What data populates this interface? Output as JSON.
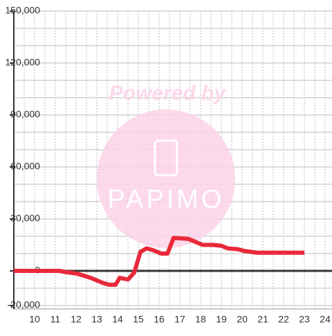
{
  "chart_data": {
    "type": "line",
    "annotations": [
      "Powered by",
      "PAPIMO"
    ],
    "x": [
      9.0,
      11.2,
      11.5,
      12.0,
      12.3,
      12.7,
      13.0,
      13.3,
      13.6,
      13.9,
      14.1,
      14.5,
      14.8,
      15.1,
      15.4,
      15.7,
      16.1,
      16.4,
      16.7,
      17.4,
      17.7,
      18.1,
      18.6,
      19.0,
      19.3,
      19.8,
      20.1,
      20.7,
      21.0,
      23.0
    ],
    "series": [
      {
        "color": "#e8293a",
        "values": [
          0,
          0,
          -700,
          -1500,
          -2500,
          -4000,
          -5500,
          -7000,
          -8000,
          -8000,
          -4000,
          -5000,
          -1000,
          11000,
          13000,
          12000,
          10000,
          10000,
          19000,
          18500,
          17000,
          15000,
          15000,
          14500,
          13000,
          12500,
          11500,
          10500,
          10500,
          10500
        ]
      }
    ],
    "xlim": [
      9,
      24.33
    ],
    "ylim": [
      -22000,
      150000
    ],
    "xticks": [
      10,
      11,
      12,
      13,
      14,
      15,
      16,
      17,
      18,
      19,
      20,
      21,
      22,
      23,
      24
    ],
    "yticks": [
      {
        "value": -20000,
        "label": "-20,000"
      },
      0,
      {
        "value": 30000,
        "label": "30,000"
      },
      {
        "value": 60000,
        "label": "60,000"
      },
      {
        "value": 90000,
        "label": "90,000"
      },
      {
        "value": 120000,
        "label": "120,000"
      },
      {
        "value": 150000,
        "label": "150,000"
      }
    ],
    "ygrid_lines": [
      -20000,
      -10000,
      0,
      10000,
      20000,
      30000,
      40000,
      50000,
      60000,
      70000,
      80000,
      90000,
      100000,
      110000,
      120000,
      130000,
      140000,
      150000
    ],
    "xgrid_lines": [
      9.5,
      10,
      10.5,
      11,
      11.5,
      12,
      12.5,
      13,
      13.5,
      14,
      14.5,
      15,
      15.5,
      16,
      16.5,
      17,
      17.5,
      18,
      18.5,
      19,
      19.5,
      20,
      20.5,
      21,
      21.5,
      22,
      22.5,
      23,
      23.5,
      24
    ]
  }
}
